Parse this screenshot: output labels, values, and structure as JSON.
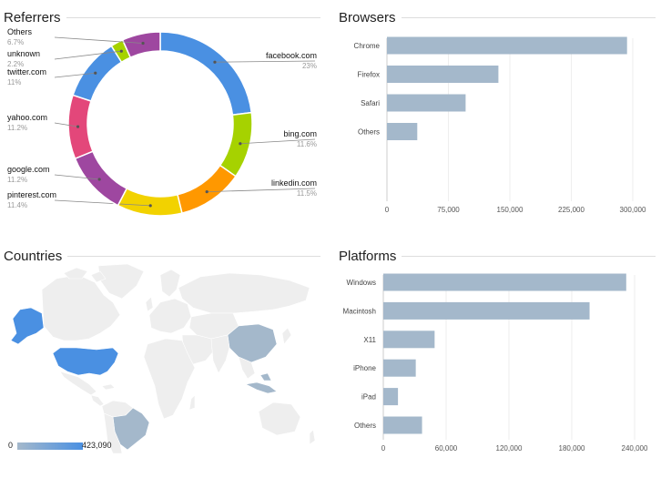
{
  "panels": {
    "referrers_title": "Referrers",
    "browsers_title": "Browsers",
    "countries_title": "Countries",
    "platforms_title": "Platforms"
  },
  "colors": {
    "bar": "#a4b8cb",
    "map_base": "#eeeeee",
    "map_low": "#a4b8cb",
    "map_high": "#4a90e2"
  },
  "chart_data": [
    {
      "type": "pie",
      "title": "Referrers",
      "donut": true,
      "slices": [
        {
          "label": "facebook.com",
          "pct_text": "23%",
          "value": 23,
          "color": "#4a90e2"
        },
        {
          "label": "bing.com",
          "pct_text": "11.6%",
          "value": 11.6,
          "color": "#a6d200"
        },
        {
          "label": "linkedin.com",
          "pct_text": "11.5%",
          "value": 11.5,
          "color": "#ff9800"
        },
        {
          "label": "pinterest.com",
          "pct_text": "11.4%",
          "value": 11.4,
          "color": "#f2d200"
        },
        {
          "label": "google.com",
          "pct_text": "11.2%",
          "value": 11.2,
          "color": "#9e47a0"
        },
        {
          "label": "yahoo.com",
          "pct_text": "11.2%",
          "value": 11.2,
          "color": "#e3477a"
        },
        {
          "label": "twitter.com",
          "pct_text": "11%",
          "value": 11,
          "color": "#4a90e2"
        },
        {
          "label": "unknown",
          "pct_text": "2.2%",
          "value": 2.2,
          "color": "#a6d200"
        },
        {
          "label": "Others",
          "pct_text": "6.7%",
          "value": 6.7,
          "color": "#9e47a0"
        }
      ]
    },
    {
      "type": "bar",
      "orientation": "horizontal",
      "title": "Browsers",
      "categories": [
        "Chrome",
        "Firefox",
        "Safari",
        "Others"
      ],
      "values": [
        293000,
        136000,
        96000,
        37000
      ],
      "xlim": [
        0,
        300000
      ],
      "ticks": [
        0,
        75000,
        150000,
        225000,
        300000
      ],
      "tick_labels": [
        "0",
        "75,000",
        "150,000",
        "225,000",
        "300,000"
      ]
    },
    {
      "type": "heatmap",
      "title": "Countries",
      "legend_min": "0",
      "legend_max": "423,090",
      "highlighted_regions": [
        "United States",
        "Alaska",
        "Brazil",
        "China",
        "Indonesia"
      ]
    },
    {
      "type": "bar",
      "orientation": "horizontal",
      "title": "Platforms",
      "categories": [
        "Windows",
        "Macintosh",
        "X11",
        "iPhone",
        "iPad",
        "Others"
      ],
      "values": [
        232000,
        197000,
        49000,
        31000,
        14000,
        37000
      ],
      "xlim": [
        0,
        240000
      ],
      "ticks": [
        0,
        60000,
        120000,
        180000,
        240000
      ],
      "tick_labels": [
        "0",
        "60,000",
        "120,000",
        "180,000",
        "240,000"
      ]
    }
  ]
}
